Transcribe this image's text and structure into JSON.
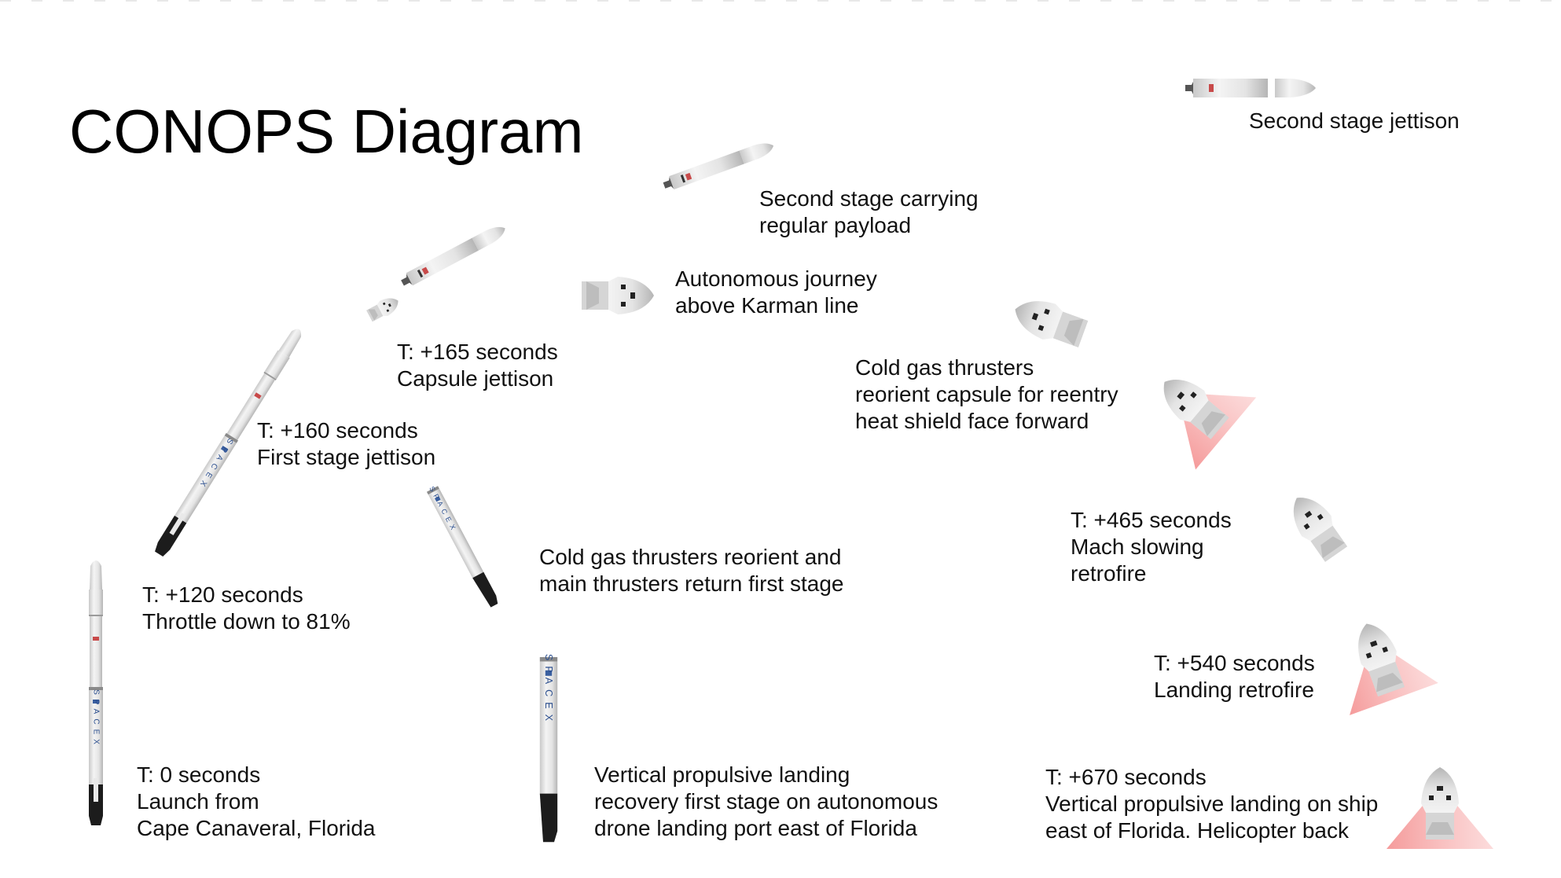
{
  "title": "CONOPS Diagram",
  "logo_text": "SPACEX",
  "colors": {
    "body": "#e6e6e6",
    "body_shadow": "#b9b9b9",
    "dark": "#1a1a1a",
    "flame": "#f07a7a",
    "text": "#111111"
  },
  "events": {
    "launch": {
      "lines": [
        "T: 0 seconds",
        "Launch from",
        "Cape Canaveral, Florida"
      ]
    },
    "throttle": {
      "lines": [
        "T: +120 seconds",
        "Throttle down to 81%"
      ]
    },
    "first_stage_jettison": {
      "lines": [
        "T: +160 seconds",
        "First stage jettison"
      ]
    },
    "capsule_jettison": {
      "lines": [
        "T: +165 seconds",
        "Capsule jettison"
      ]
    },
    "second_stage_payload": {
      "lines": [
        "Second stage carrying",
        "regular payload"
      ]
    },
    "second_stage_jettison": {
      "lines": [
        "Second stage jettison"
      ]
    },
    "autonomous_journey": {
      "lines": [
        "Autonomous journey",
        "above Karman line"
      ]
    },
    "reorient_capsule": {
      "lines": [
        "Cold gas thrusters",
        "reorient capsule for reentry",
        "heat shield face forward"
      ]
    },
    "first_stage_return": {
      "lines": [
        "Cold gas thrusters reorient and",
        "main thrusters return first stage"
      ]
    },
    "first_stage_landing": {
      "lines": [
        "Vertical propulsive landing",
        "recovery first stage on autonomous",
        "drone landing port east of Florida"
      ]
    },
    "mach_slowing": {
      "lines": [
        "T: +465 seconds",
        "Mach slowing",
        "retrofire"
      ]
    },
    "landing_retrofire": {
      "lines": [
        "T: +540 seconds",
        "Landing retrofire"
      ]
    },
    "capsule_landing": {
      "lines": [
        "T: +670 seconds",
        "Vertical propulsive landing on ship",
        "east of Florida. Helicopter back"
      ]
    }
  },
  "icons": [
    "rocket-full-vertical-icon",
    "rocket-full-tilted-icon",
    "second-stage-with-capsule-icon",
    "capsule-jettison-icon",
    "second-stage-icon",
    "second-stage-separated-icon",
    "capsule-coasting-icon",
    "capsule-reorienting-icon",
    "capsule-reentry-flame-icon",
    "capsule-slowing-icon",
    "capsule-retrofire-icon",
    "capsule-landing-icon",
    "first-stage-returning-icon",
    "first-stage-landed-icon"
  ]
}
